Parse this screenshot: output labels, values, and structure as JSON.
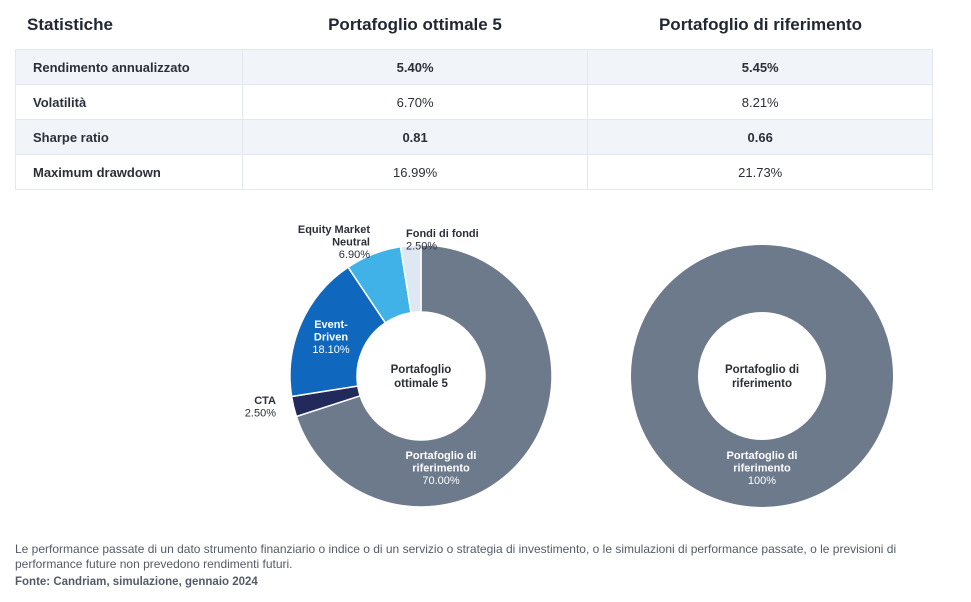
{
  "stats": {
    "headers": [
      "Statistiche",
      "Portafoglio ottimale 5",
      "Portafoglio di riferimento"
    ],
    "rows": [
      {
        "label": "Rendimento annualizzato",
        "v1": "5.40%",
        "v2": "5.45%"
      },
      {
        "label": "Volatilità",
        "v1": "6.70%",
        "v2": "8.21%"
      },
      {
        "label": "Sharpe ratio",
        "v1": "0.81",
        "v2": "0.66"
      },
      {
        "label": "Maximum drawdown",
        "v1": "16.99%",
        "v2": "21.73%"
      }
    ]
  },
  "chart_data": [
    {
      "type": "pie",
      "center_label": [
        "Portafoglio",
        "ottimale 5"
      ],
      "slices": [
        {
          "name": [
            "Portafoglio di",
            "riferimento"
          ],
          "value": 70.0,
          "label": "70.00%",
          "color": "#6c7a8c"
        },
        {
          "name": [
            "CTA"
          ],
          "value": 2.5,
          "label": "2.50%",
          "color": "#222a5c"
        },
        {
          "name": [
            "Event-",
            "Driven"
          ],
          "value": 18.1,
          "label": "18.10%",
          "color": "#0f68bd"
        },
        {
          "name": [
            "Equity Market",
            "Neutral"
          ],
          "value": 6.9,
          "label": "6.90%",
          "color": "#41b2e8"
        },
        {
          "name": [
            "Fondi di fondi"
          ],
          "value": 2.5,
          "label": "2.50%",
          "color": "#dde8f3"
        }
      ]
    },
    {
      "type": "pie",
      "center_label": [
        "Portafoglio di",
        "riferimento"
      ],
      "slices": [
        {
          "name": [
            "Portafoglio di",
            "riferimento"
          ],
          "value": 100,
          "label": "100%",
          "color": "#6c7a8c"
        }
      ]
    }
  ],
  "footnote": "Le performance passate di un dato strumento finanziario o indice o di un servizio o strategia di investimento, o le simulazioni di performance passate, o le previsioni di performance future non prevedono rendimenti futuri.",
  "source": "Fonte: Candriam, simulazione, gennaio 2024"
}
